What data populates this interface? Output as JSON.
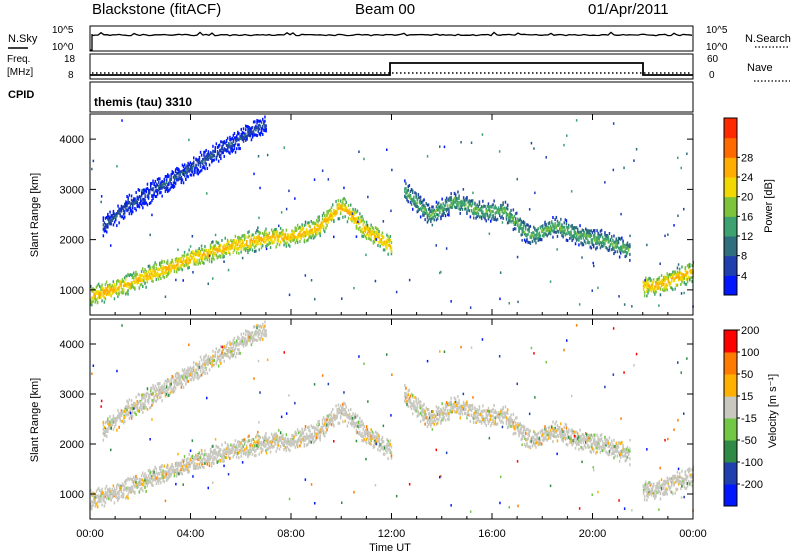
{
  "header": {
    "title": "Blackstone (fitACF)",
    "beam": "Beam 00",
    "date": "01/Apr/2011"
  },
  "header_panels": {
    "nsky_label": "N.Sky",
    "nsearch_label": "N.Search",
    "freq_label_line1": "Freq.",
    "freq_label_line2": "[MHz]",
    "nave_label": "Nave",
    "cpid_label": "CPID",
    "cpid_text": "themis (tau) 3310",
    "nsky_ticks": [
      "10^5",
      "10^0"
    ],
    "nsearch_ticks": [
      "10^5",
      "10^0"
    ],
    "freq_ticks": [
      "18",
      "8"
    ],
    "nave_ticks": [
      "60",
      "0"
    ]
  },
  "chart_data": [
    {
      "type": "heatmap",
      "panel": "power",
      "ylabel": "Slant Range [km]",
      "ylim": [
        500,
        4500
      ],
      "yticks": [
        1000,
        2000,
        3000,
        4000
      ],
      "xlim": [
        0,
        24
      ],
      "xticks": [
        "00:00",
        "04:00",
        "08:00",
        "12:00",
        "16:00",
        "20:00",
        "00:00"
      ],
      "colorbar": {
        "label": "Power [dB]",
        "ticks": [
          4,
          8,
          12,
          16,
          20,
          24,
          28
        ],
        "colors": [
          "#0018ff",
          "#1f3fae",
          "#2f6e7e",
          "#3ea270",
          "#7dc43a",
          "#f0d800",
          "#ffae00",
          "#ff6a00",
          "#ff2a00"
        ]
      },
      "bands": [
        {
          "x": [
            0,
            1,
            2,
            3,
            4,
            5,
            6,
            7,
            8,
            9,
            10,
            11,
            12
          ],
          "y": [
            900,
            1050,
            1250,
            1450,
            1650,
            1800,
            1950,
            2050,
            2100,
            2250,
            2700,
            2200,
            1900
          ],
          "level": 22
        },
        {
          "x": [
            0.5,
            1.5,
            2.5,
            3.5,
            4.5,
            5.5,
            6.5,
            7.0
          ],
          "y": [
            2300,
            2700,
            3000,
            3300,
            3600,
            3900,
            4200,
            4350
          ],
          "level": 6
        },
        {
          "x": [
            12.5,
            13.5,
            14.5,
            15.5,
            16.5,
            17.5,
            18.5,
            19.5,
            20.5,
            21.5
          ],
          "y": [
            3000,
            2500,
            2800,
            2600,
            2600,
            2100,
            2300,
            2100,
            2000,
            1800
          ],
          "level": 14
        },
        {
          "x": [
            22.0,
            22.5,
            23.0,
            23.5,
            24.0
          ],
          "y": [
            1100,
            1100,
            1200,
            1300,
            1400
          ],
          "level": 22
        }
      ]
    },
    {
      "type": "heatmap",
      "panel": "velocity",
      "ylabel": "Slant Range [km]",
      "ylim": [
        500,
        4500
      ],
      "yticks": [
        1000,
        2000,
        3000,
        4000
      ],
      "xlim": [
        0,
        24
      ],
      "xticks": [
        "00:00",
        "04:00",
        "08:00",
        "12:00",
        "16:00",
        "20:00",
        "00:00"
      ],
      "xlabel": "Time UT",
      "colorbar": {
        "label": "Velocity [m s⁻¹]",
        "ticks": [
          200,
          100,
          50,
          15,
          -15,
          -50,
          -100,
          -200
        ],
        "colors": [
          "#0018ff",
          "#1f3fae",
          "#2e8a44",
          "#72c845",
          "#c8c8c0",
          "#ffb000",
          "#ff7a00",
          "#ff0000"
        ]
      }
    }
  ]
}
